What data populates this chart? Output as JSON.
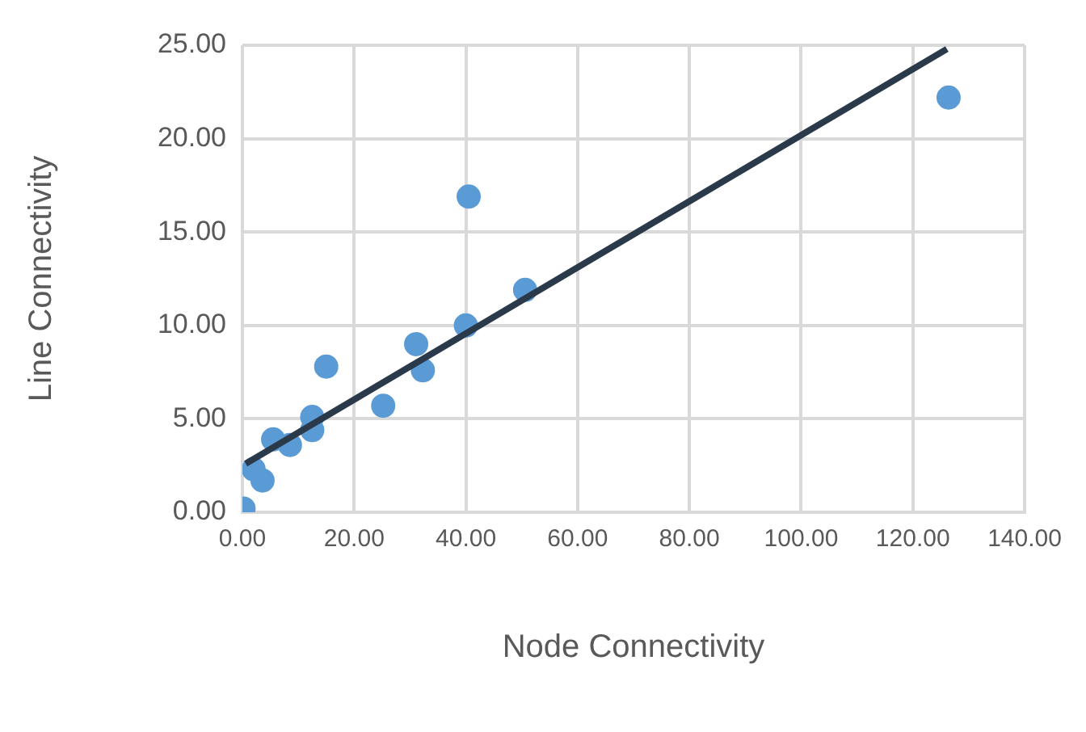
{
  "chart_data": {
    "type": "scatter",
    "xlabel": "Node Connectivity",
    "ylabel": "Line Connectivity",
    "xlim": [
      0,
      140
    ],
    "xticks": [
      {
        "value": 0,
        "label": "0.00"
      },
      {
        "value": 20,
        "label": "20.00"
      },
      {
        "value": 40,
        "label": "40.00"
      },
      {
        "value": 60,
        "label": "60.00"
      },
      {
        "value": 80,
        "label": "80.00"
      },
      {
        "value": 100,
        "label": "100.00"
      },
      {
        "value": 120,
        "label": "120.00"
      },
      {
        "value": 140,
        "label": "140.00"
      }
    ],
    "ylim": [
      0,
      25
    ],
    "yticks": [
      {
        "value": 0,
        "label": "0.00"
      },
      {
        "value": 5,
        "label": "5.00"
      },
      {
        "value": 10,
        "label": "10.00"
      },
      {
        "value": 15,
        "label": "15.00"
      },
      {
        "value": 20,
        "label": "20.00"
      },
      {
        "value": 25,
        "label": "25.00"
      }
    ],
    "grid": true,
    "legend": false,
    "series": [
      {
        "marker": "circle",
        "color": "#5b9bd5",
        "x": [
          0.2,
          2.0,
          3.6,
          5.5,
          8.5,
          12.5,
          12.5,
          15.0,
          25.2,
          31.1,
          32.3,
          40.0,
          40.5,
          50.6,
          126.4
        ],
        "values": [
          0.2,
          2.3,
          1.7,
          3.9,
          3.6,
          5.1,
          4.4,
          7.8,
          5.7,
          9.0,
          7.6,
          10.0,
          16.9,
          11.9,
          22.2
        ]
      },
      {
        "type": "line",
        "color": "#2b3a4a",
        "x": [
          0.6,
          126.1
        ],
        "values": [
          2.6,
          24.8
        ]
      }
    ]
  }
}
